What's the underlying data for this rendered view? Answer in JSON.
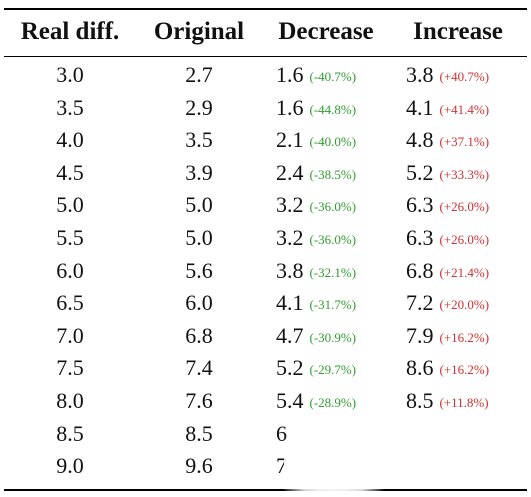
{
  "table": {
    "headers": {
      "real_diff": "Real diff.",
      "original": "Original",
      "decrease": "Decrease",
      "increase": "Increase"
    },
    "rows": [
      {
        "real": "3.0",
        "orig": "2.7",
        "dec": "1.6",
        "dec_pct": "(-40.7%)",
        "inc": "3.8",
        "inc_pct": "(+40.7%)"
      },
      {
        "real": "3.5",
        "orig": "2.9",
        "dec": "1.6",
        "dec_pct": "(-44.8%)",
        "inc": "4.1",
        "inc_pct": "(+41.4%)"
      },
      {
        "real": "4.0",
        "orig": "3.5",
        "dec": "2.1",
        "dec_pct": "(-40.0%)",
        "inc": "4.8",
        "inc_pct": "(+37.1%)"
      },
      {
        "real": "4.5",
        "orig": "3.9",
        "dec": "2.4",
        "dec_pct": "(-38.5%)",
        "inc": "5.2",
        "inc_pct": "(+33.3%)"
      },
      {
        "real": "5.0",
        "orig": "5.0",
        "dec": "3.2",
        "dec_pct": "(-36.0%)",
        "inc": "6.3",
        "inc_pct": "(+26.0%)"
      },
      {
        "real": "5.5",
        "orig": "5.0",
        "dec": "3.2",
        "dec_pct": "(-36.0%)",
        "inc": "6.3",
        "inc_pct": "(+26.0%)"
      },
      {
        "real": "6.0",
        "orig": "5.6",
        "dec": "3.8",
        "dec_pct": "(-32.1%)",
        "inc": "6.8",
        "inc_pct": "(+21.4%)"
      },
      {
        "real": "6.5",
        "orig": "6.0",
        "dec": "4.1",
        "dec_pct": "(-31.7%)",
        "inc": "7.2",
        "inc_pct": "(+20.0%)"
      },
      {
        "real": "7.0",
        "orig": "6.8",
        "dec": "4.7",
        "dec_pct": "(-30.9%)",
        "inc": "7.9",
        "inc_pct": "(+16.2%)"
      },
      {
        "real": "7.5",
        "orig": "7.4",
        "dec": "5.2",
        "dec_pct": "(-29.7%)",
        "inc": "8.6",
        "inc_pct": "(+16.2%)"
      },
      {
        "real": "8.0",
        "orig": "7.6",
        "dec": "5.4",
        "dec_pct": "(-28.9%)",
        "inc": "8.5",
        "inc_pct": "(+11.8%)"
      },
      {
        "real": "8.5",
        "orig": "8.5",
        "dec": "6",
        "dec_pct": "",
        "inc": "",
        "inc_pct": ""
      },
      {
        "real": "9.0",
        "orig": "9.6",
        "dec": "7",
        "dec_pct": "",
        "inc": "",
        "inc_pct": ""
      }
    ]
  },
  "colors": {
    "decrease_pct": "#2e9e2e",
    "increase_pct": "#d23030",
    "rule": "#000000"
  }
}
